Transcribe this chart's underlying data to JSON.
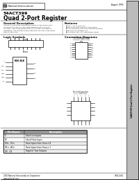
{
  "title_part": "54ACT399",
  "title_main": "Quad 2-Port Register",
  "company": "National Semiconductor",
  "bg_color": "#ffffff",
  "header_date": "August 1993",
  "section_general": "General Description",
  "section_features": "Features",
  "section_logic": "Logic Symbols",
  "section_connection": "Connection Diagrams",
  "general_text": [
    "The 54ACT399 is the single-chip version of the quad 2-port",
    "functional machine for the edge triggered flip-flop 8-bit",
    "bus form. Select determine which of the two port states is",
    "registered. The selected data enters the flip-flop on the rising",
    "edge of the clock."
  ],
  "features_text": [
    "Vcc = 5V+/-10% TITL",
    "Balanced line-drive sink and source",
    "Fully specified output-to-output transitions",
    "Bus-line compatible TTL",
    "ACTIMOS over TTL-compatible inputs"
  ],
  "pin_table_headers": [
    "Pin Names",
    "Description"
  ],
  "pin_rows": [
    [
      "S",
      "Selection Inputs"
    ],
    [
      "CP",
      "Clock Pulse Input"
    ],
    [
      "D0n - D1n",
      "Data Inputs from Source B"
    ],
    [
      "D1n - A1n",
      "Data Inputs from Source 1"
    ],
    [
      "Q0 - Q3",
      "Register True Outputs"
    ]
  ],
  "footer_copyright": "2000 National Semiconductor Corporation",
  "footer_docnum": "DS012345",
  "sidebar_text": "54ACT399 Quad 2-Port Register"
}
